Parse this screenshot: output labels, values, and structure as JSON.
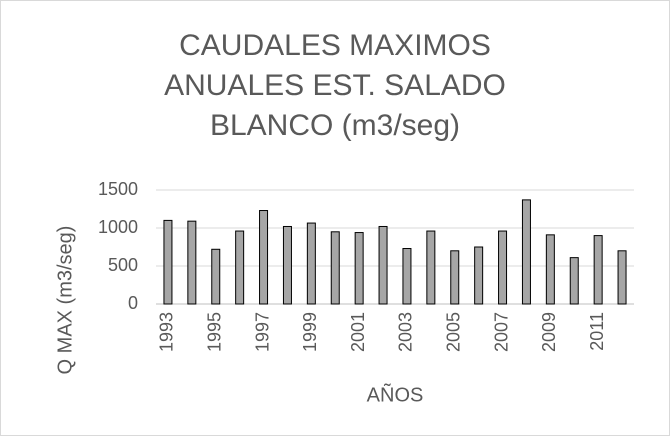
{
  "chart_data": {
    "type": "bar",
    "title": "CAUDALES MAXIMOS ANUALES EST. SALADO BLANCO (m3/seg)",
    "x_label": "AÑOS",
    "y_label": "Q MAX (m3/seg)",
    "categories": [
      "1993",
      null,
      "1995",
      null,
      "1997",
      null,
      "1999",
      null,
      "2001",
      null,
      "2003",
      null,
      "2005",
      null,
      "2007",
      null,
      "2009",
      null,
      "2011",
      null
    ],
    "values": [
      1100,
      1090,
      720,
      960,
      1230,
      1020,
      1065,
      950,
      940,
      1020,
      730,
      960,
      700,
      750,
      960,
      1370,
      910,
      610,
      900,
      700
    ],
    "color": "#a6a6a6",
    "ylim": [
      0,
      1500
    ],
    "yticks": [
      0,
      500,
      1000,
      1500
    ],
    "grid": true
  }
}
